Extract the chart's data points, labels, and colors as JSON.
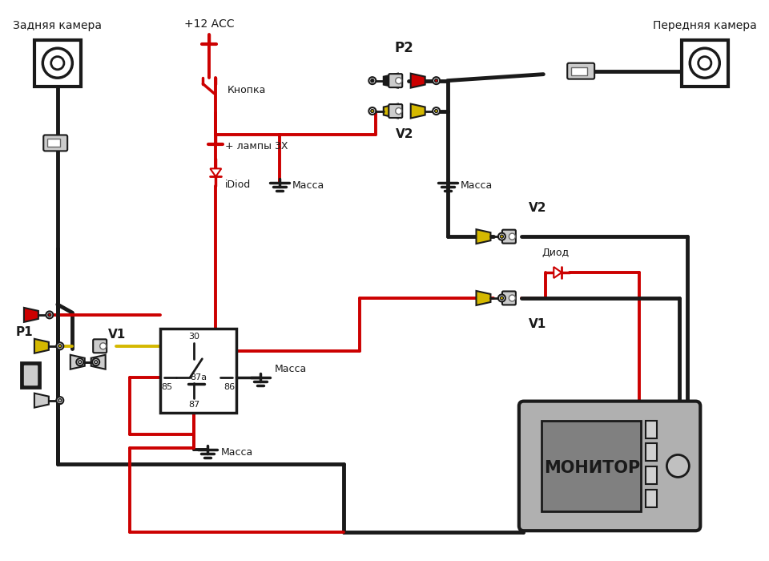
{
  "bg_color": "#ffffff",
  "labels": {
    "rear_camera": "Задняя камера",
    "front_camera": "Передняя камера",
    "p1": "P1",
    "p2": "P2",
    "v1_left": "V1",
    "v1_right": "V1",
    "v2_top": "V2",
    "v2_right": "V2",
    "button": "Кнопка",
    "acc": "+12 АСС",
    "lamp_plus": "+ лампы 3Х",
    "idiod": "iDiod",
    "massa1": "Масса",
    "massa2": "Масса",
    "massa3": "Масса",
    "diod": "Диод",
    "monitor": "МОНИТОР",
    "relay_30": "30",
    "relay_85": "85",
    "relay_87a": "87a",
    "relay_86": "86",
    "relay_87": "87"
  },
  "colors": {
    "red": "#cc0000",
    "black": "#1a1a1a",
    "yellow": "#d4b800",
    "gray": "#999999",
    "dark_gray": "#666666",
    "white": "#ffffff",
    "light_gray": "#cccccc"
  }
}
